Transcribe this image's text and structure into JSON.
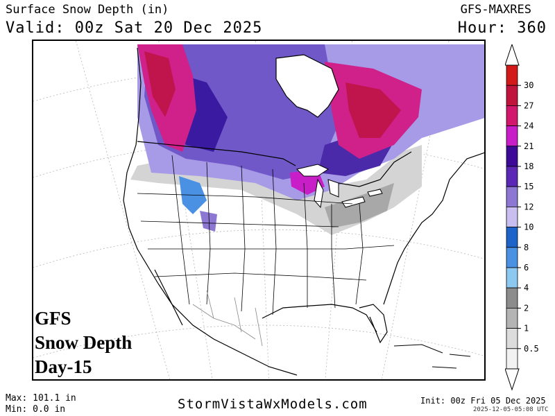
{
  "header": {
    "title": "Surface Snow Depth (in)",
    "valid": "Valid: 00z Sat 20 Dec 2025",
    "model": "GFS-MAXRES",
    "hour": "Hour: 360"
  },
  "overlay": {
    "line1": "GFS",
    "line2": "Snow Depth",
    "line3": "Day-15"
  },
  "legend": {
    "units": "in",
    "ticks": [
      "30",
      "27",
      "24",
      "21",
      "18",
      "15",
      "12",
      "10",
      "8",
      "6",
      "4",
      "2",
      "1",
      "0.5"
    ],
    "bands": [
      {
        "color": "#d21a1a"
      },
      {
        "color": "#c0143c"
      },
      {
        "color": "#d2186c"
      },
      {
        "color": "#c81ec8"
      },
      {
        "color": "#3c0a96"
      },
      {
        "color": "#5a28b4"
      },
      {
        "color": "#8c78d2"
      },
      {
        "color": "#c8bef0"
      },
      {
        "color": "#1e64c8"
      },
      {
        "color": "#4a91e4"
      },
      {
        "color": "#8cc8f0"
      },
      {
        "color": "#8c8c8c"
      },
      {
        "color": "#b4b4b4"
      },
      {
        "color": "#dcdcdc"
      },
      {
        "color": "#f2f2f2"
      }
    ]
  },
  "footer": {
    "max": "Max: 101.1 in",
    "min": "Min: 0.0 in",
    "site": "StormVistaWxModels.com",
    "init": "Init: 00z Fri 05 Dec 2025",
    "stamp": "2025-12-05-05:08 UTC"
  }
}
